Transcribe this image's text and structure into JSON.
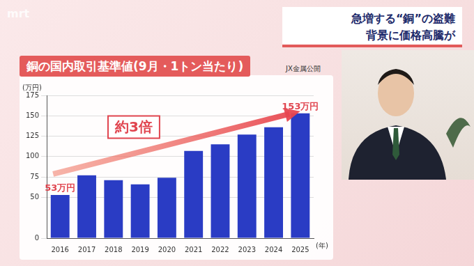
{
  "page": {
    "logo": "mrt",
    "headline": [
      "急増する“銅”の盗難",
      "背景に価格高騰が"
    ],
    "source": "JX金属公開"
  },
  "chart_data": {
    "type": "bar",
    "title": "銅の国内取引基準値(9月・1トン当たり)",
    "y_label": "(万円)",
    "x_label": "(年)",
    "categories": [
      "2016",
      "2017",
      "2018",
      "2019",
      "2020",
      "2021",
      "2022",
      "2023",
      "2024",
      "2025"
    ],
    "values": [
      53,
      77,
      71,
      66,
      74,
      107,
      115,
      127,
      136,
      153
    ],
    "color": "#2a3cc4",
    "ylim": [
      0,
      175
    ],
    "yticks": [
      0,
      50,
      75,
      100,
      125,
      150,
      175
    ],
    "grid": true,
    "annotations": [
      {
        "category": "2016",
        "value": 53,
        "label": "53万円"
      },
      {
        "category": "2025",
        "value": 153,
        "label": "153万円"
      },
      {
        "label": "約3倍"
      }
    ]
  }
}
